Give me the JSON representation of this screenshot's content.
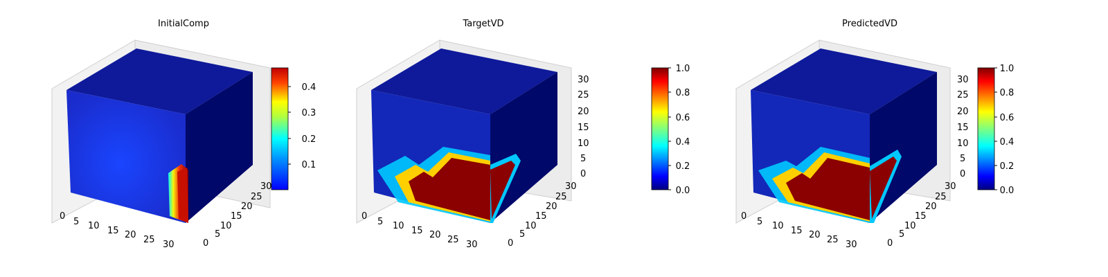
{
  "chart_data": [
    {
      "type": "voxel-3d",
      "title": "InitialComp",
      "x_ticks": [
        "0",
        "5",
        "10",
        "15",
        "20",
        "25",
        "30"
      ],
      "y_ticks": [
        "0",
        "5",
        "10",
        "15",
        "20",
        "25",
        "30"
      ],
      "z_ticks": [],
      "colorbar": {
        "min": 0.0,
        "max": 0.47,
        "ticks": [
          "0.1",
          "0.2",
          "0.3",
          "0.4"
        ],
        "tick_values": [
          0.1,
          0.2,
          0.3,
          0.4
        ],
        "colormap": "jet"
      }
    },
    {
      "type": "voxel-3d",
      "title": "TargetVD",
      "x_ticks": [
        "0",
        "5",
        "10",
        "15",
        "20",
        "25",
        "30"
      ],
      "y_ticks": [
        "0",
        "5",
        "10",
        "15",
        "20",
        "25",
        "30"
      ],
      "z_ticks": [
        "0",
        "5",
        "10",
        "15",
        "20",
        "25",
        "30"
      ],
      "colorbar": {
        "min": 0.0,
        "max": 1.0,
        "ticks": [
          "0.0",
          "0.2",
          "0.4",
          "0.6",
          "0.8",
          "1.0"
        ],
        "tick_values": [
          0,
          0.2,
          0.4,
          0.6,
          0.8,
          1.0
        ],
        "colormap": "jet"
      }
    },
    {
      "type": "voxel-3d",
      "title": "PredictedVD",
      "x_ticks": [
        "0",
        "5",
        "10",
        "15",
        "20",
        "25",
        "30"
      ],
      "y_ticks": [
        "0",
        "5",
        "10",
        "15",
        "20",
        "25",
        "30"
      ],
      "z_ticks": [
        "0",
        "5",
        "10",
        "15",
        "20",
        "25",
        "30"
      ],
      "colorbar": {
        "min": 0.0,
        "max": 1.0,
        "ticks": [
          "0.0",
          "0.2",
          "0.4",
          "0.6",
          "0.8",
          "1.0"
        ],
        "tick_values": [
          0,
          0.2,
          0.4,
          0.6,
          0.8,
          1.0
        ],
        "colormap": "jet"
      }
    }
  ],
  "colors": {
    "jet": [
      "#00007f",
      "#0000ff",
      "#007fff",
      "#00ffff",
      "#7fff7f",
      "#ffff00",
      "#ff7f00",
      "#ff0000",
      "#7f0000"
    ],
    "cube_front": "#1a2ccc",
    "cube_top": "#0e1a9a",
    "cube_side": "#00086a",
    "hot_core": "#8b0000",
    "pane": "#f2f2f2",
    "pane_edge": "#c8c8c8"
  }
}
